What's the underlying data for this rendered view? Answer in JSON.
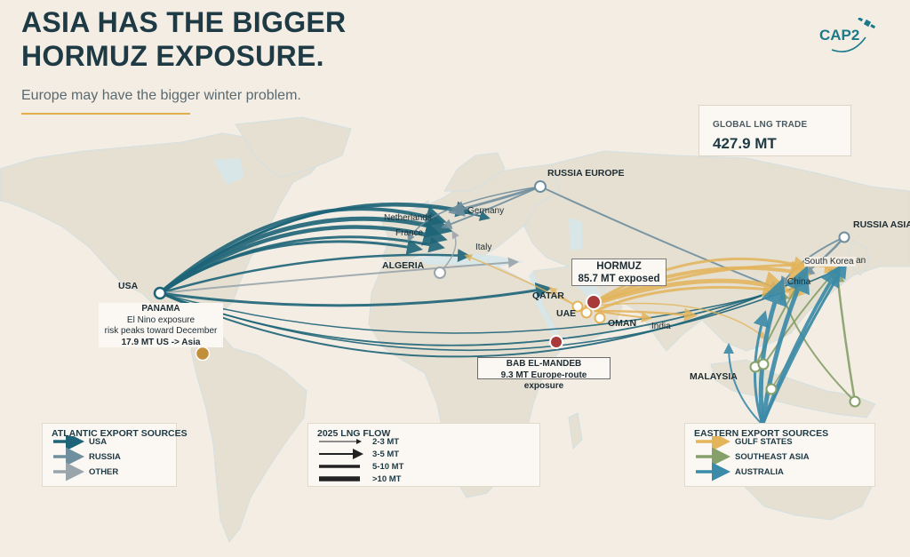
{
  "header": {
    "title_line1": "ASIA HAS THE BIGGER",
    "title_line2": "HORMUZ EXPOSURE.",
    "subtitle": "Europe may have the bigger winter problem.",
    "logo": "CAP2"
  },
  "stat": {
    "label": "GLOBAL LNG TRADE",
    "value": "427.9 MT"
  },
  "map_labels": {
    "usa": "USA",
    "russia_europe": "RUSSIA EUROPE",
    "russia_asia": "RUSSIA ASIA",
    "netherlands": "Netherlands",
    "germany": "Germany",
    "france": "France",
    "italy": "Italy",
    "algeria": "ALGERIA",
    "qatar": "QATAR",
    "uae": "UAE",
    "oman": "OMAN",
    "india": "India",
    "china": "China",
    "south_korea": "South Korea",
    "japan": "Japan",
    "malaysia": "MALAYSIA"
  },
  "chokepoints": {
    "hormuz": {
      "name": "HORMUZ",
      "detail": "85.7 MT exposed"
    },
    "panama": {
      "name": "PANAMA",
      "line1": "El Nino exposure",
      "line2": "risk peaks toward December",
      "line3": "17.9 MT US -> Asia"
    },
    "bab_el_mandeb": {
      "name": "BAB EL-MANDEB",
      "detail": "9.3 MT Europe-route exposure"
    }
  },
  "legend_atlantic": {
    "title": "ATLANTIC EXPORT SOURCES",
    "items": [
      {
        "label": "USA",
        "color": "#1d6478"
      },
      {
        "label": "RUSSIA",
        "color": "#6f8f9e"
      },
      {
        "label": "OTHER",
        "color": "#9aa5ab"
      }
    ]
  },
  "legend_flow": {
    "title": "2025 LNG FLOW",
    "items": [
      {
        "label": "2-3 MT"
      },
      {
        "label": "3-5 MT"
      },
      {
        "label": "5-10 MT"
      },
      {
        "label": ">10 MT"
      }
    ]
  },
  "legend_eastern": {
    "title": "EASTERN EXPORT SOURCES",
    "items": [
      {
        "label": "GULF STATES",
        "color": "#e3b45a"
      },
      {
        "label": "SOUTHEAST ASIA",
        "color": "#86a06a"
      },
      {
        "label": "AUSTRALIA",
        "color": "#3a8aa8"
      }
    ]
  },
  "colors": {
    "background": "#f4ede4",
    "land": "#e8e2d6",
    "water": "#d7e7ea",
    "usa_flow": "#1d6478",
    "russia_flow": "#6f8f9e",
    "gulf_flow": "#e3b45a",
    "sea_flow": "#86a06a",
    "australia_flow": "#3a8aa8",
    "chokepoint": "#a83a3a"
  }
}
